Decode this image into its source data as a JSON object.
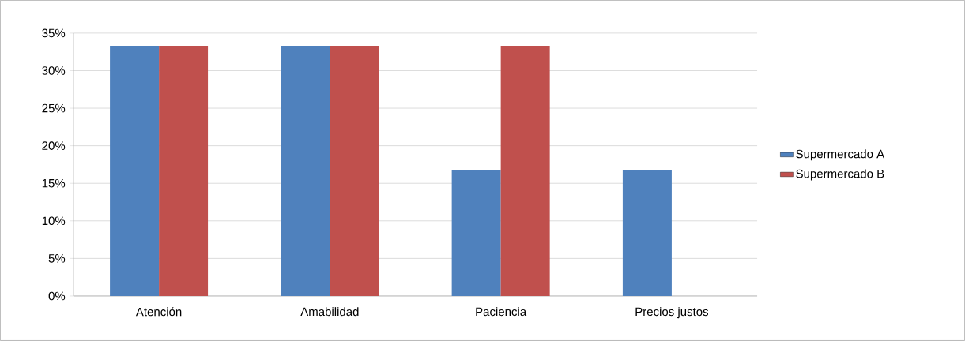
{
  "chart_data": {
    "type": "bar",
    "categories": [
      "Atención",
      "Amabilidad",
      "Paciencia",
      "Precios justos"
    ],
    "series": [
      {
        "name": "Supermercado  A",
        "color": "#4f81bd",
        "values": [
          33.3,
          33.3,
          16.7,
          16.7
        ]
      },
      {
        "name": "Supermercado  B",
        "color": "#c0504d",
        "values": [
          33.3,
          33.3,
          33.3,
          0
        ]
      }
    ],
    "ylim": [
      0,
      35
    ],
    "yticks": [
      {
        "value": 0,
        "label": "0%"
      },
      {
        "value": 5,
        "label": "5%"
      },
      {
        "value": 10,
        "label": "10%"
      },
      {
        "value": 15,
        "label": "15%"
      },
      {
        "value": 20,
        "label": "20%"
      },
      {
        "value": 25,
        "label": "25%"
      },
      {
        "value": 30,
        "label": "30%"
      },
      {
        "value": 35,
        "label": "35%"
      }
    ],
    "grid": "y",
    "legend": "right"
  }
}
